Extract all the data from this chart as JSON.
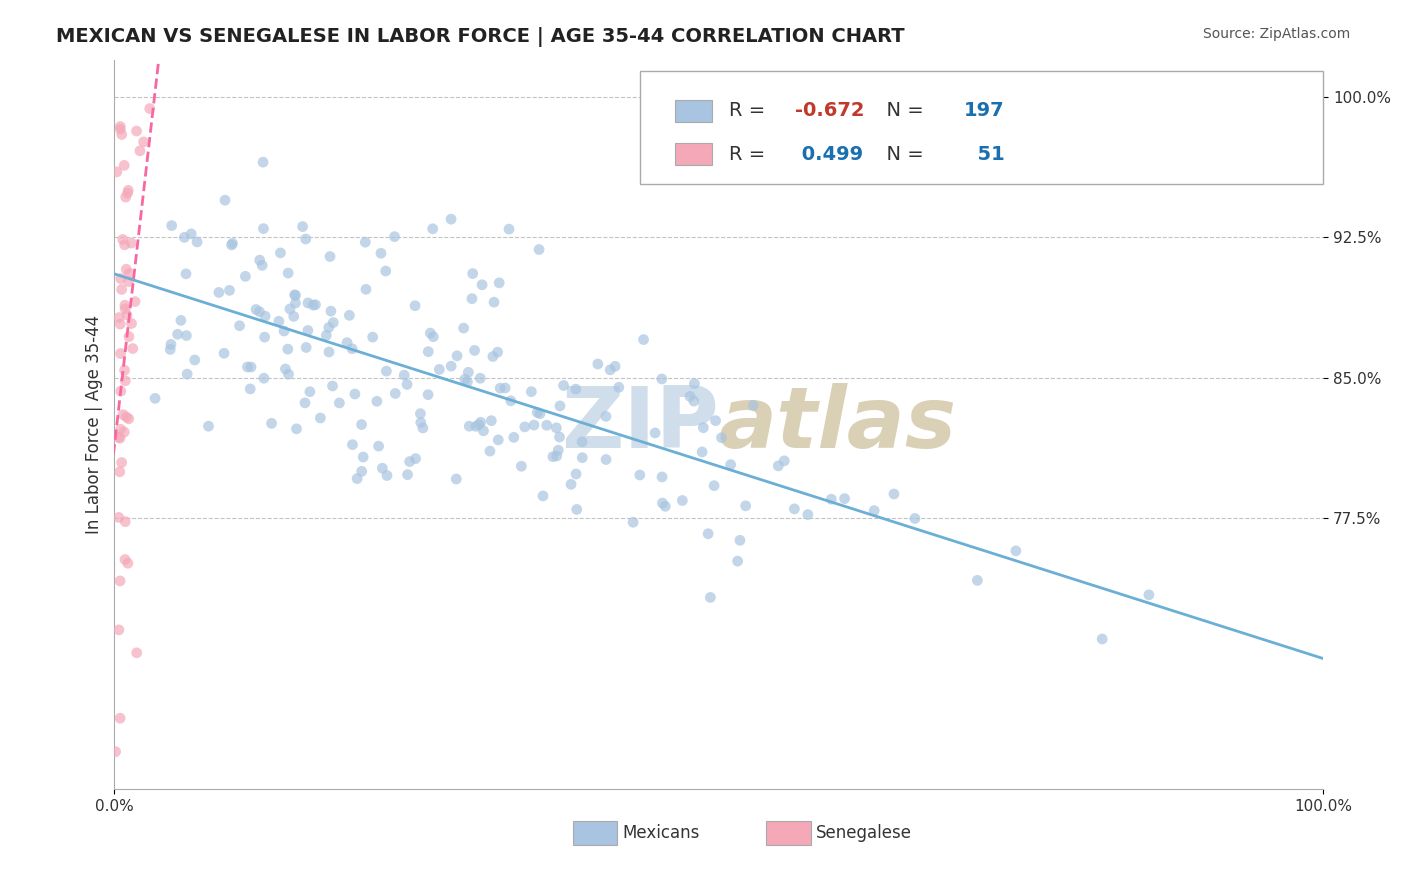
{
  "title": "MEXICAN VS SENEGALESE IN LABOR FORCE | AGE 35-44 CORRELATION CHART",
  "source_text": "Source: ZipAtlas.com",
  "xlabel": "",
  "ylabel": "In Labor Force | Age 35-44",
  "xlim": [
    0.0,
    1.0
  ],
  "ylim": [
    0.63,
    1.02
  ],
  "yticks": [
    0.775,
    0.85,
    0.925,
    1.0
  ],
  "ytick_labels": [
    "77.5%",
    "85.0%",
    "92.5%",
    "100.0%"
  ],
  "xtick_labels": [
    "0.0%",
    "100.0%"
  ],
  "xticks": [
    0.0,
    1.0
  ],
  "mexican_color": "#a8c4e0",
  "senegalese_color": "#f4a8b8",
  "mexican_line_color": "#6baed6",
  "senegalese_line_color": "#f768a1",
  "R_mexican": -0.672,
  "N_mexican": 197,
  "R_senegalese": 0.499,
  "N_senegalese": 51,
  "watermark": "ZIPatlas",
  "watermark_color_zip": "#c8d8e8",
  "watermark_color_atlas": "#d4c8b0",
  "legend_x_color": "#6baed6",
  "legend_s_color": "#f4a8b8",
  "title_fontsize": 14,
  "axis_label_fontsize": 12,
  "tick_fontsize": 11,
  "legend_fontsize": 13,
  "source_fontsize": 10
}
